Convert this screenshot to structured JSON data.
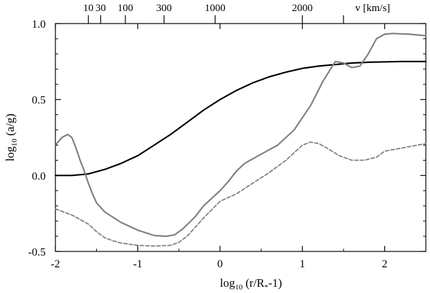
{
  "chart_data": {
    "type": "line",
    "xlabel": {
      "pre": "log",
      "sub": "10",
      "post": " (r/R",
      "subscript2": "*",
      "post2": "-1)"
    },
    "ylabel": {
      "pre": "log",
      "sub": "10",
      "post": " (a/g)"
    },
    "xlim": [
      -2.0,
      2.5
    ],
    "ylim": [
      -0.5,
      1.0
    ],
    "x_ticks": [
      -2,
      -1,
      0,
      1,
      2
    ],
    "x_tick_labels": [
      "-2",
      "-1",
      "0",
      "1",
      "2"
    ],
    "y_ticks": [
      -0.5,
      0.0,
      0.5,
      1.0
    ],
    "y_tick_labels": [
      "-0.5",
      "0.0",
      "0.5",
      "1.0"
    ],
    "top_axis": {
      "label": "v [km/s]",
      "ticks": [
        {
          "x": -1.6,
          "label": "10"
        },
        {
          "x": -1.45,
          "label": "30"
        },
        {
          "x": -1.15,
          "label": "100"
        },
        {
          "x": -0.68,
          "label": "300"
        },
        {
          "x": -0.06,
          "label": "1000"
        },
        {
          "x": 1.0,
          "label": "2000"
        },
        {
          "x": 1.5,
          "label": ""
        }
      ]
    },
    "grid": false,
    "series": [
      {
        "color": "#000000",
        "style": "solid",
        "x": [
          -2.0,
          -1.8,
          -1.6,
          -1.4,
          -1.2,
          -1.0,
          -0.8,
          -0.6,
          -0.4,
          -0.2,
          0.0,
          0.2,
          0.4,
          0.6,
          0.8,
          1.0,
          1.2,
          1.4,
          1.6,
          1.8,
          2.0,
          2.2,
          2.5
        ],
        "y": [
          0.0,
          0.0,
          0.01,
          0.04,
          0.08,
          0.13,
          0.2,
          0.27,
          0.35,
          0.43,
          0.5,
          0.56,
          0.61,
          0.65,
          0.68,
          0.705,
          0.72,
          0.73,
          0.74,
          0.745,
          0.748,
          0.75,
          0.75
        ]
      },
      {
        "color": "#808080",
        "style": "solid",
        "x": [
          -2.0,
          -1.92,
          -1.85,
          -1.8,
          -1.75,
          -1.7,
          -1.65,
          -1.6,
          -1.55,
          -1.5,
          -1.4,
          -1.2,
          -1.0,
          -0.8,
          -0.65,
          -0.55,
          -0.45,
          -0.3,
          -0.2,
          -0.1,
          0.0,
          0.1,
          0.2,
          0.3,
          0.5,
          0.7,
          0.9,
          1.1,
          1.25,
          1.4,
          1.5,
          1.6,
          1.7,
          1.8,
          1.9,
          2.0,
          2.1,
          2.3,
          2.5
        ],
        "y": [
          0.2,
          0.25,
          0.27,
          0.25,
          0.18,
          0.1,
          0.03,
          -0.05,
          -0.12,
          -0.18,
          -0.24,
          -0.31,
          -0.36,
          -0.395,
          -0.4,
          -0.39,
          -0.35,
          -0.27,
          -0.2,
          -0.15,
          -0.1,
          -0.04,
          0.03,
          0.08,
          0.14,
          0.2,
          0.3,
          0.46,
          0.62,
          0.75,
          0.74,
          0.71,
          0.72,
          0.8,
          0.9,
          0.93,
          0.935,
          0.93,
          0.92
        ]
      },
      {
        "color": "#808080",
        "style": "dashed",
        "x": [
          -2.0,
          -1.8,
          -1.6,
          -1.5,
          -1.4,
          -1.3,
          -1.2,
          -1.0,
          -0.8,
          -0.6,
          -0.5,
          -0.4,
          -0.2,
          0.0,
          0.2,
          0.4,
          0.6,
          0.8,
          1.0,
          1.1,
          1.2,
          1.3,
          1.45,
          1.6,
          1.75,
          1.9,
          2.0,
          2.2,
          2.4,
          2.5
        ],
        "y": [
          -0.22,
          -0.26,
          -0.32,
          -0.37,
          -0.41,
          -0.43,
          -0.445,
          -0.46,
          -0.465,
          -0.46,
          -0.44,
          -0.4,
          -0.28,
          -0.17,
          -0.12,
          -0.05,
          0.02,
          0.1,
          0.2,
          0.22,
          0.21,
          0.18,
          0.13,
          0.1,
          0.1,
          0.12,
          0.16,
          0.18,
          0.2,
          0.21
        ]
      }
    ]
  }
}
